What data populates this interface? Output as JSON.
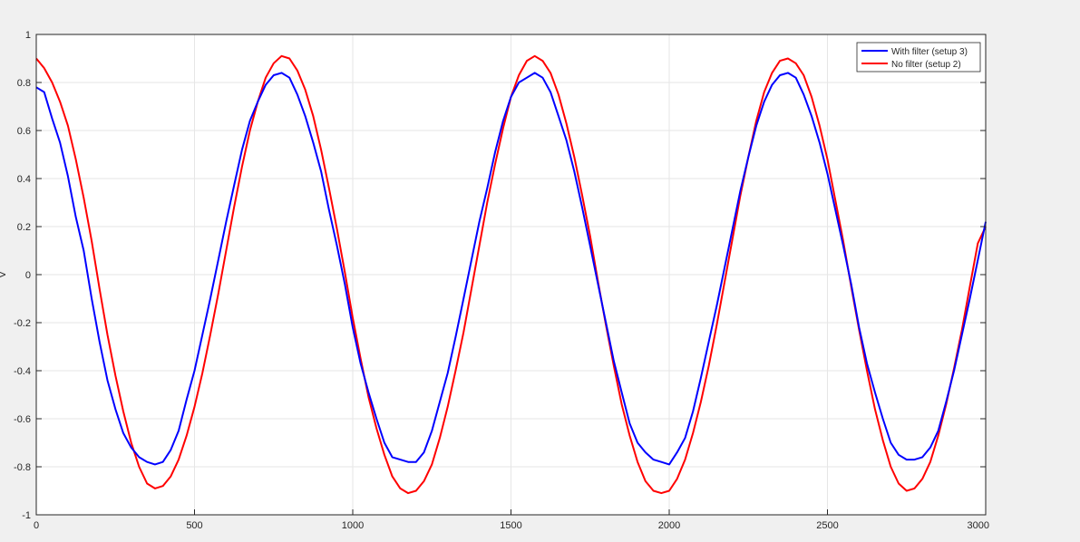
{
  "figure": {
    "background": "#f0f0f0",
    "axes_background": "#ffffff"
  },
  "chart_data": {
    "type": "line",
    "title": "",
    "xlabel": "",
    "ylabel": "V",
    "xlim": [
      0,
      3000
    ],
    "ylim": [
      -1,
      1
    ],
    "xticks": [
      0,
      500,
      1000,
      1500,
      2000,
      2500,
      3000
    ],
    "yticks": [
      -1,
      -0.8,
      -0.6,
      -0.4,
      -0.2,
      0,
      0.2,
      0.4,
      0.6,
      0.8,
      1
    ],
    "grid": true,
    "legend_position": "top-right",
    "x": [
      0,
      25,
      50,
      75,
      100,
      125,
      150,
      175,
      200,
      225,
      250,
      275,
      300,
      325,
      350,
      375,
      400,
      425,
      450,
      475,
      500,
      525,
      550,
      575,
      600,
      625,
      650,
      675,
      700,
      725,
      750,
      775,
      800,
      825,
      850,
      875,
      900,
      925,
      950,
      975,
      1000,
      1025,
      1050,
      1075,
      1100,
      1125,
      1150,
      1175,
      1200,
      1225,
      1250,
      1275,
      1300,
      1325,
      1350,
      1375,
      1400,
      1425,
      1450,
      1475,
      1500,
      1525,
      1550,
      1575,
      1600,
      1625,
      1650,
      1675,
      1700,
      1725,
      1750,
      1775,
      1800,
      1825,
      1850,
      1875,
      1900,
      1925,
      1950,
      1975,
      2000,
      2025,
      2050,
      2075,
      2100,
      2125,
      2150,
      2175,
      2200,
      2225,
      2250,
      2275,
      2300,
      2325,
      2350,
      2375,
      2400,
      2425,
      2450,
      2475,
      2500,
      2525,
      2550,
      2575,
      2600,
      2625,
      2650,
      2675,
      2700,
      2725,
      2750,
      2775,
      2800,
      2825,
      2850,
      2875,
      2900,
      2925,
      2950,
      2975,
      3000
    ],
    "series": [
      {
        "name": "With filter (setup 3)",
        "color": "#0000ff",
        "values": [
          0.78,
          0.76,
          0.65,
          0.55,
          0.41,
          0.24,
          0.1,
          -0.1,
          -0.28,
          -0.44,
          -0.56,
          -0.66,
          -0.72,
          -0.76,
          -0.78,
          -0.79,
          -0.78,
          -0.73,
          -0.65,
          -0.52,
          -0.4,
          -0.25,
          -0.1,
          0.06,
          0.22,
          0.37,
          0.52,
          0.64,
          0.72,
          0.79,
          0.83,
          0.84,
          0.82,
          0.75,
          0.66,
          0.55,
          0.43,
          0.27,
          0.12,
          -0.04,
          -0.22,
          -0.37,
          -0.49,
          -0.6,
          -0.7,
          -0.76,
          -0.77,
          -0.78,
          -0.78,
          -0.74,
          -0.65,
          -0.53,
          -0.41,
          -0.26,
          -0.1,
          0.06,
          0.22,
          0.36,
          0.51,
          0.64,
          0.74,
          0.8,
          0.82,
          0.84,
          0.82,
          0.76,
          0.66,
          0.56,
          0.43,
          0.28,
          0.12,
          -0.04,
          -0.2,
          -0.36,
          -0.49,
          -0.62,
          -0.7,
          -0.74,
          -0.77,
          -0.78,
          -0.79,
          -0.74,
          -0.68,
          -0.57,
          -0.43,
          -0.28,
          -0.13,
          0.03,
          0.19,
          0.35,
          0.49,
          0.62,
          0.72,
          0.79,
          0.83,
          0.84,
          0.82,
          0.75,
          0.66,
          0.55,
          0.42,
          0.27,
          0.12,
          -0.04,
          -0.22,
          -0.37,
          -0.49,
          -0.6,
          -0.7,
          -0.75,
          -0.77,
          -0.77,
          -0.76,
          -0.72,
          -0.65,
          -0.53,
          -0.4,
          -0.25,
          -0.1,
          0.06,
          0.22
        ]
      },
      {
        "name": "No filter (setup 2)",
        "color": "#ff0000",
        "values": [
          0.9,
          0.86,
          0.8,
          0.72,
          0.62,
          0.48,
          0.32,
          0.14,
          -0.06,
          -0.25,
          -0.42,
          -0.57,
          -0.7,
          -0.8,
          -0.87,
          -0.89,
          -0.88,
          -0.84,
          -0.77,
          -0.67,
          -0.55,
          -0.41,
          -0.25,
          -0.08,
          0.1,
          0.28,
          0.45,
          0.6,
          0.72,
          0.82,
          0.88,
          0.91,
          0.9,
          0.85,
          0.77,
          0.66,
          0.52,
          0.36,
          0.19,
          0.01,
          -0.18,
          -0.35,
          -0.51,
          -0.64,
          -0.75,
          -0.84,
          -0.89,
          -0.91,
          -0.9,
          -0.86,
          -0.79,
          -0.68,
          -0.55,
          -0.4,
          -0.24,
          -0.06,
          0.12,
          0.3,
          0.46,
          0.61,
          0.74,
          0.83,
          0.89,
          0.91,
          0.89,
          0.84,
          0.75,
          0.63,
          0.49,
          0.33,
          0.16,
          -0.03,
          -0.21,
          -0.38,
          -0.54,
          -0.67,
          -0.78,
          -0.86,
          -0.9,
          -0.91,
          -0.9,
          -0.85,
          -0.77,
          -0.66,
          -0.53,
          -0.38,
          -0.21,
          -0.03,
          0.15,
          0.33,
          0.49,
          0.64,
          0.76,
          0.84,
          0.89,
          0.9,
          0.88,
          0.83,
          0.74,
          0.62,
          0.48,
          0.31,
          0.14,
          -0.05,
          -0.23,
          -0.4,
          -0.56,
          -0.69,
          -0.8,
          -0.87,
          -0.9,
          -0.89,
          -0.85,
          -0.78,
          -0.67,
          -0.54,
          -0.39,
          -0.23,
          -0.05,
          0.13,
          0.2
        ]
      }
    ]
  }
}
